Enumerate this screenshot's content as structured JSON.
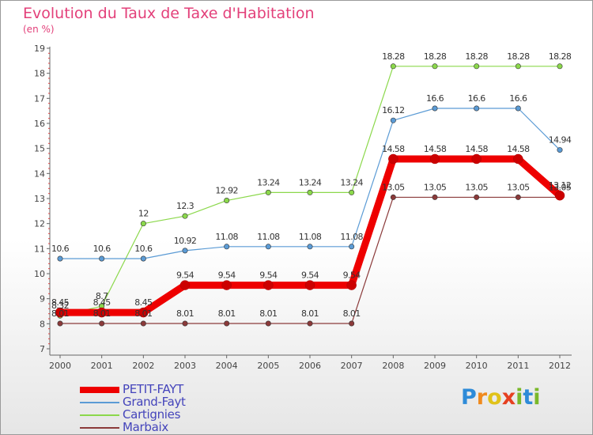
{
  "title": "Evolution du Taux de Taxe d'Habitation",
  "subtitle": "(en %)",
  "logo": {
    "text": "Proxiti",
    "letters": [
      {
        "ch": "P",
        "color": "#2e8bd8"
      },
      {
        "ch": "r",
        "color": "#f08a1e"
      },
      {
        "ch": "o",
        "color": "#e0c21a"
      },
      {
        "ch": "x",
        "color": "#e64020"
      },
      {
        "ch": "i",
        "color": "#7ab82a"
      },
      {
        "ch": "t",
        "color": "#2e8bd8"
      },
      {
        "ch": "i",
        "color": "#7ab82a"
      }
    ]
  },
  "chart_data": {
    "type": "line",
    "x": [
      2000,
      2001,
      2002,
      2003,
      2004,
      2005,
      2006,
      2007,
      2008,
      2009,
      2010,
      2011,
      2012
    ],
    "ylim": [
      7,
      19
    ],
    "yticks": [
      7,
      8,
      9,
      10,
      11,
      12,
      13,
      14,
      15,
      16,
      17,
      18,
      19
    ],
    "grid": false,
    "legend_position": "bottom-left",
    "series": [
      {
        "name": "PETIT-FAYT",
        "color": "#ee0000",
        "width": 9,
        "values": [
          8.45,
          8.45,
          8.45,
          9.54,
          9.54,
          9.54,
          9.54,
          9.54,
          14.58,
          14.58,
          14.58,
          14.58,
          13.12
        ],
        "labels": [
          "8.45",
          "8.45",
          "8.45",
          "9.54",
          "9.54",
          "9.54",
          "9.54",
          "9.54",
          "14.58",
          "14.58",
          "14.58",
          "14.58",
          "13.12"
        ]
      },
      {
        "name": "Grand-Fayt",
        "color": "#5b9bd5",
        "width": 1.2,
        "values": [
          10.6,
          10.6,
          10.6,
          10.92,
          11.08,
          11.08,
          11.08,
          11.08,
          16.12,
          16.6,
          16.6,
          16.6,
          14.94
        ],
        "labels": [
          "10.6",
          "10.6",
          "10.6",
          "10.92",
          "11.08",
          "11.08",
          "11.08",
          "11.08",
          "16.12",
          "16.6",
          "16.6",
          "16.6",
          "14.94"
        ]
      },
      {
        "name": "Cartignies",
        "color": "#8bd84b",
        "width": 1.2,
        "values": [
          8.32,
          8.7,
          12,
          12.3,
          12.92,
          13.24,
          13.24,
          13.24,
          18.28,
          18.28,
          18.28,
          18.28,
          18.28
        ],
        "labels": [
          "8.32",
          "8.7",
          "12",
          "12.3",
          "12.92",
          "13.24",
          "13.24",
          "13.24",
          "18.28",
          "18.28",
          "18.28",
          "18.28",
          "18.28"
        ]
      },
      {
        "name": "Marbaix",
        "color": "#8b3a3a",
        "width": 1.2,
        "values": [
          8.01,
          8.01,
          8.01,
          8.01,
          8.01,
          8.01,
          8.01,
          8.01,
          13.05,
          13.05,
          13.05,
          13.05,
          13.05
        ],
        "labels": [
          "8.01",
          "8.01",
          "8.01",
          "8.01",
          "8.01",
          "8.01",
          "8.01",
          "8.01",
          "13.05",
          "13.05",
          "13.05",
          "13.05",
          "13.05"
        ]
      }
    ]
  }
}
